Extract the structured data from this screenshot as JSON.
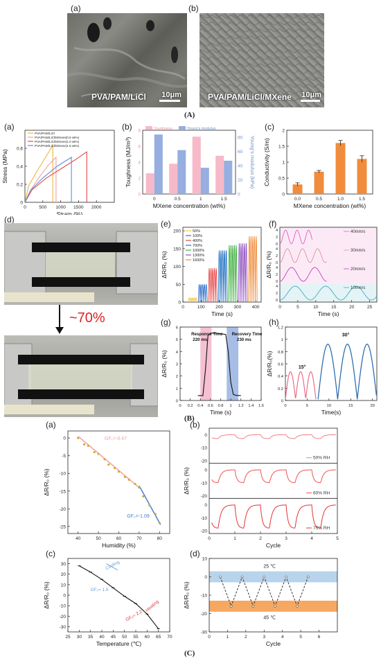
{
  "section_A": {
    "label": "(A)",
    "panel_a": {
      "label": "(a)",
      "caption": "PVA/PAM/LiCl",
      "scale": "10μm"
    },
    "panel_b": {
      "label": "(b)",
      "caption": "PVA/PAM/LiCl/MXene",
      "scale": "10μm"
    }
  },
  "section_B": {
    "label": "(B)",
    "panel_d": {
      "label": "(d)",
      "stretch_text": "~70%"
    },
    "panel_labels": {
      "a": "(a)",
      "b": "(b)",
      "c": "(c)",
      "e": "(e)",
      "f": "(f)",
      "g": "(g)",
      "h": "(h)"
    }
  },
  "section_C": {
    "label": "(C)",
    "panel_labels": {
      "a": "(a)",
      "b": "(b)",
      "c": "(c)",
      "d": "(d)"
    }
  },
  "chart_data": [
    {
      "id": "B-a",
      "type": "line",
      "xlabel": "Strain (%)",
      "ylabel": "Stress (MPa)",
      "xlim": [
        0,
        2500
      ],
      "ylim": [
        0,
        0.8
      ],
      "xticks": [
        0,
        500,
        1000,
        1500,
        2000
      ],
      "yticks": [
        0.0,
        0.2,
        0.4,
        0.6
      ],
      "legend": "top-left",
      "series": [
        {
          "name": "PVA/PAM/LiCl",
          "color": "#f0b43c",
          "x": [
            0,
            100,
            300,
            500,
            700,
            780,
            780
          ],
          "y": [
            0,
            0.18,
            0.32,
            0.45,
            0.58,
            0.63,
            0
          ]
        },
        {
          "name": "PVA/PAM/LiCl/MXene(0.5 wt%)",
          "color": "#f4a0a0",
          "x": [
            0,
            150,
            400,
            650,
            870,
            870
          ],
          "y": [
            0,
            0.13,
            0.28,
            0.41,
            0.5,
            0
          ]
        },
        {
          "name": "PVA/PAM/LiCl/MXene(1.0 wt%)",
          "color": "#e84848",
          "x": [
            0,
            200,
            600,
            1000,
            1400,
            1730,
            1730
          ],
          "y": [
            0,
            0.14,
            0.27,
            0.37,
            0.47,
            0.56,
            0
          ]
        },
        {
          "name": "PVA/PAM/LiCl/MXene(1.5 wt%)",
          "color": "#5b8fd8",
          "x": [
            0,
            150,
            500,
            900,
            1300,
            1300
          ],
          "y": [
            0,
            0.13,
            0.27,
            0.4,
            0.5,
            0
          ]
        }
      ]
    },
    {
      "id": "B-b",
      "type": "bar",
      "xlabel": "MXene concentration (wt%)",
      "ylabel": "Toughness (MJ/m³)",
      "y2label": "Young's modulus (kPa)",
      "categories": [
        "0",
        "0.5",
        "1",
        "1.5"
      ],
      "legend": "top-left",
      "ylim": [
        0,
        8
      ],
      "y2lim": [
        0,
        90
      ],
      "series": [
        {
          "name": "Toughness",
          "color": "#f7b9c8",
          "values": [
            2.6,
            3.8,
            7.2,
            4.8
          ]
        },
        {
          "name": "Young's modulus",
          "color": "#96aee0",
          "values": [
            84,
            62,
            37,
            47
          ],
          "axis": "right"
        }
      ]
    },
    {
      "id": "B-c",
      "type": "bar",
      "xlabel": "MXene concentration (wt%)",
      "ylabel": "Conductivity (S/m)",
      "categories": [
        "0.0",
        "0.5",
        "1.0",
        "1.5"
      ],
      "ylim": [
        0,
        2.0
      ],
      "yticks": [
        0.0,
        0.5,
        1.0,
        1.5,
        2.0
      ],
      "series": [
        {
          "name": "",
          "color": "#f08c3c",
          "values": [
            0.3,
            0.7,
            1.6,
            1.1
          ],
          "errors": [
            0.05,
            0.04,
            0.08,
            0.1
          ]
        }
      ]
    },
    {
      "id": "B-e",
      "type": "line",
      "xlabel": "Time (s)",
      "ylabel": "ΔR/R₀ (%)",
      "xlim": [
        0,
        430
      ],
      "ylim": [
        0,
        210
      ],
      "xticks": [
        0,
        100,
        200,
        300,
        400
      ],
      "yticks": [
        0,
        50,
        100,
        150,
        200
      ],
      "legend": "top-left",
      "series": [
        {
          "name": "50%",
          "color": "#f5c542",
          "amp": 12
        },
        {
          "name": "100%",
          "color": "#3070c8",
          "amp": 50
        },
        {
          "name": "400%",
          "color": "#e84848",
          "amp": 95
        },
        {
          "name": "700%",
          "color": "#2070c0",
          "amp": 145
        },
        {
          "name": "1000%",
          "color": "#40b040",
          "amp": 160
        },
        {
          "name": "1300%",
          "color": "#9050c0",
          "amp": 165
        },
        {
          "name": "1600%",
          "color": "#f08c3c",
          "amp": 185
        }
      ]
    },
    {
      "id": "B-f",
      "type": "line",
      "xlabel": "Time (s)",
      "ylabel": "ΔR/R₀ (%)",
      "xticks": [
        0,
        5,
        10,
        15,
        20,
        25
      ],
      "series": [
        {
          "name": "40mm/s",
          "color": "#e060c0"
        },
        {
          "name": "30mm/s",
          "color": "#e09090"
        },
        {
          "name": "20mm/s",
          "color": "#c040c0"
        },
        {
          "name": "10mm/s",
          "color": "#40b0c0"
        }
      ]
    },
    {
      "id": "B-g",
      "type": "line",
      "xlabel": "Time (s)",
      "ylabel": "ΔR/R₀ (%)",
      "xlim": [
        0,
        1.6
      ],
      "ylim": [
        0,
        6
      ],
      "xticks": [
        0.0,
        0.2,
        0.4,
        0.6,
        0.8,
        1.0,
        1.2,
        1.4,
        1.6
      ],
      "yticks": [
        0,
        1,
        2,
        3,
        4,
        5,
        6
      ],
      "annotations": [
        "Response Time",
        "220 ms",
        "Recovery Time",
        "230 ms"
      ],
      "x": [
        0.35,
        0.45,
        0.5,
        0.55,
        0.6,
        0.7,
        0.9,
        0.95,
        1.0,
        1.05,
        1.1,
        1.2
      ],
      "y": [
        0.4,
        0.4,
        2.5,
        5.3,
        5.5,
        5.5,
        5.4,
        4.0,
        1.5,
        0.5,
        0.42,
        0.4
      ]
    },
    {
      "id": "B-h",
      "type": "line",
      "xlabel": "Time(s)",
      "ylabel": "ΔR/R₀(%)",
      "xlim": [
        0,
        21
      ],
      "ylim": [
        0,
        1.2
      ],
      "xticks": [
        0,
        5,
        10,
        15,
        20
      ],
      "yticks": [
        0.0,
        0.2,
        0.4,
        0.6,
        0.8,
        1.0,
        1.2
      ],
      "annotations": [
        "15°",
        "30°"
      ],
      "series": [
        {
          "name": "",
          "color": "#e86080",
          "amp": 0.45
        },
        {
          "name": "",
          "color": "#2f6fb0",
          "amp": 0.9
        }
      ]
    },
    {
      "id": "C-a",
      "type": "scatter",
      "xlabel": "Humidity (%)",
      "ylabel": "ΔR/R₀ (%)",
      "xlim": [
        35,
        85
      ],
      "ylim": [
        -27,
        2
      ],
      "xticks": [
        40,
        50,
        60,
        70,
        80
      ],
      "yticks": [
        0,
        -5,
        -10,
        -15,
        -20,
        -25
      ],
      "annotations": [
        "GF₁=-0.47",
        "GF₂=-1.09"
      ],
      "x": [
        40,
        43,
        45,
        48,
        50,
        53,
        55,
        58,
        60,
        63,
        65,
        68,
        70,
        72,
        75,
        78,
        80
      ],
      "y": [
        0,
        -1.8,
        -2.2,
        -4,
        -4.5,
        -6,
        -7.5,
        -8.5,
        -9.5,
        -11,
        -11.8,
        -13,
        -14,
        -16.5,
        -19,
        -21.5,
        -24
      ]
    },
    {
      "id": "C-b",
      "type": "line",
      "xlabel": "Cycle",
      "ylabel": "ΔR/R₀ (%)",
      "xlim": [
        0,
        5
      ],
      "xticks": [
        0,
        1,
        2,
        3,
        4,
        5
      ],
      "series": [
        {
          "name": "50% RH",
          "color": "#f08080",
          "depth": 3
        },
        {
          "name": "60% RH",
          "color": "#f05050",
          "depth": 10
        },
        {
          "name": "75% RH",
          "color": "#e83030",
          "depth": 18
        }
      ]
    },
    {
      "id": "C-c",
      "type": "line",
      "xlabel": "Temperature (℃)",
      "ylabel": "ΔR/R₀ (%)",
      "xlim": [
        25,
        70
      ],
      "ylim": [
        -35,
        35
      ],
      "xticks": [
        25,
        30,
        35,
        40,
        45,
        50,
        55,
        60,
        65,
        70
      ],
      "yticks": [
        30,
        20,
        10,
        0,
        -10,
        -20,
        -30
      ],
      "annotations": [
        "Cooling",
        "Heating",
        "GF₁= 1.5",
        "GF₂= 2.2"
      ],
      "x": [
        30,
        35,
        40,
        45,
        50,
        55,
        60,
        65
      ],
      "y": [
        28,
        22,
        15,
        7,
        -1,
        -8,
        -18,
        -32
      ]
    },
    {
      "id": "C-d",
      "type": "line",
      "xlabel": "Cycle",
      "ylabel": "ΔR/R₀ (%)",
      "xlim": [
        0,
        7
      ],
      "ylim": [
        -30,
        10
      ],
      "xticks": [
        0,
        1,
        2,
        3,
        4,
        5,
        6
      ],
      "yticks": [
        10,
        0,
        -10,
        -20,
        -30
      ],
      "annotations": [
        "25 ℃",
        "45 ℃"
      ],
      "x": [
        0.6,
        1.2,
        1.8,
        2.4,
        3.0,
        3.6,
        4.2,
        4.8,
        5.4
      ],
      "y": [
        0,
        -16,
        0,
        -16,
        0,
        -16,
        0,
        -16,
        0
      ]
    }
  ]
}
